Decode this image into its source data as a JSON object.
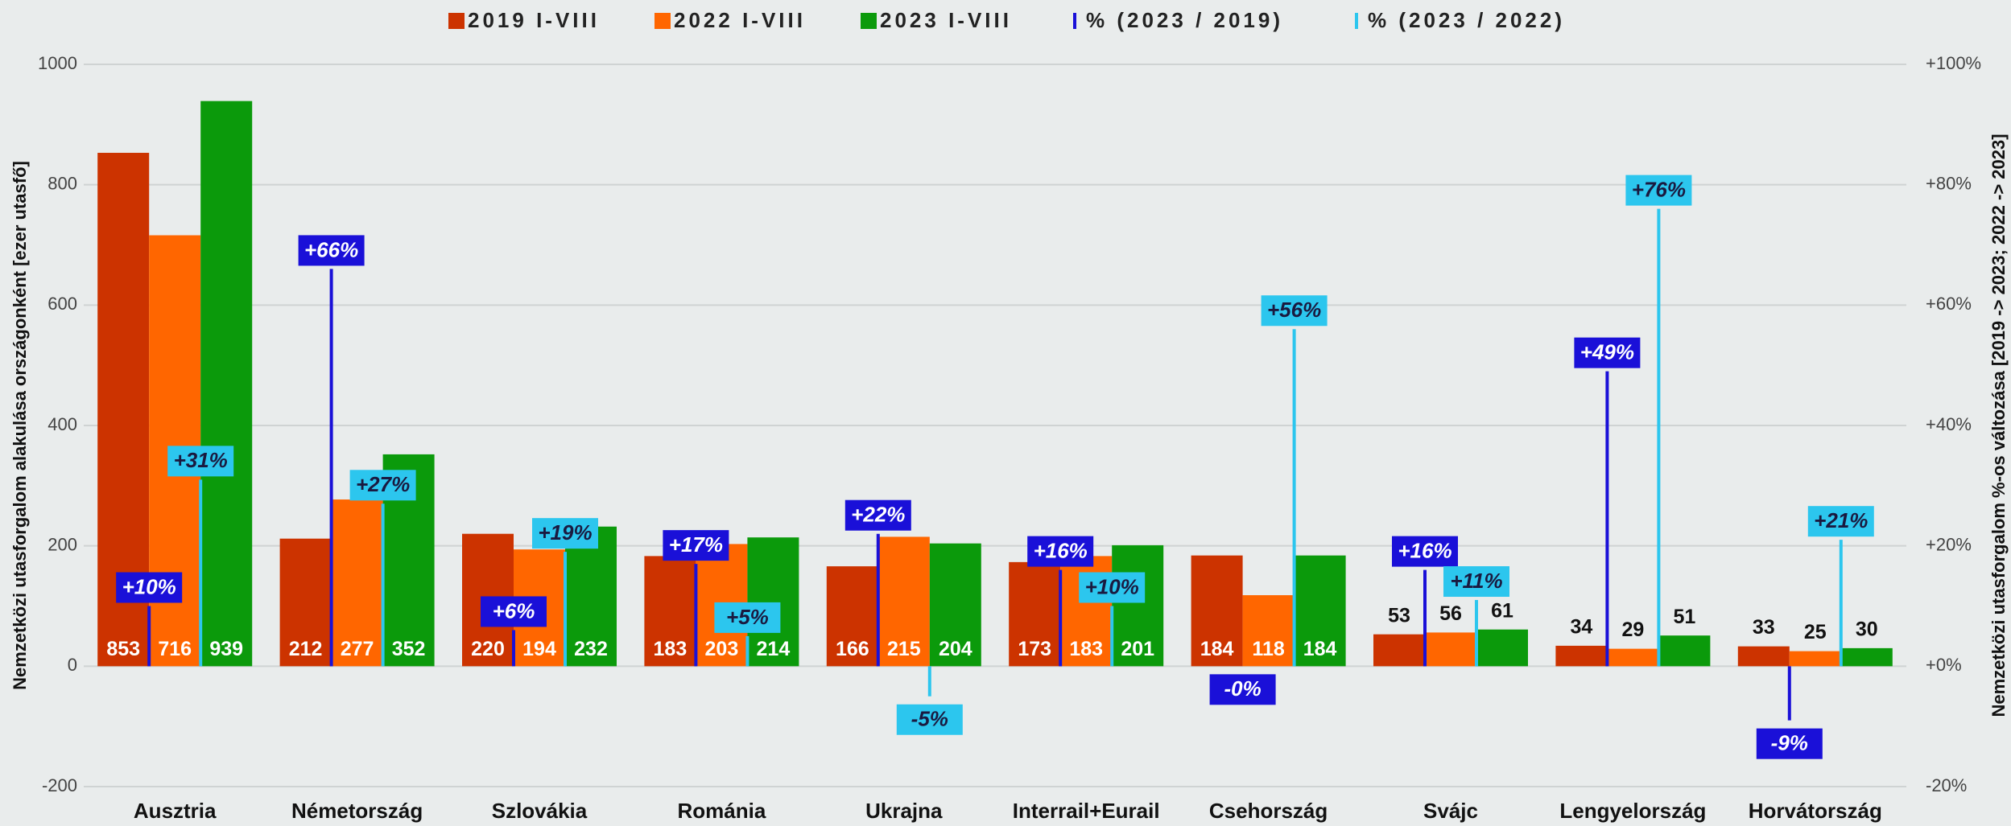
{
  "chart_data": {
    "type": "bar",
    "categories": [
      "Ausztria",
      "Németország",
      "Szlovákia",
      "Románia",
      "Ukrajna",
      "Interrail+Eurail",
      "Csehország",
      "Svájc",
      "Lengyelország",
      "Horvátország"
    ],
    "series": [
      {
        "name": "2019 I-VIII",
        "color": "#cc3300",
        "values": [
          853,
          212,
          220,
          183,
          166,
          173,
          184,
          53,
          34,
          33
        ]
      },
      {
        "name": "2022 I-VIII",
        "color": "#ff6600",
        "values": [
          716,
          277,
          194,
          203,
          215,
          183,
          118,
          56,
          29,
          25
        ]
      },
      {
        "name": "2023 I-VIII",
        "color": "#0b9a0b",
        "values": [
          939,
          352,
          232,
          214,
          204,
          201,
          184,
          61,
          51,
          30
        ]
      },
      {
        "name": "% (2023 / 2019)",
        "color": "#1a10d8",
        "axis": "y2",
        "values": [
          10,
          66,
          6,
          17,
          22,
          16,
          0,
          16,
          49,
          -9
        ],
        "value_labels": [
          "+10%",
          "+66%",
          "+6%",
          "+17%",
          "+22%",
          "+16%",
          "-0%",
          "+16%",
          "+49%",
          "-9%"
        ]
      },
      {
        "name": "% (2023 / 2022)",
        "color": "#2cc6ee",
        "axis": "y2",
        "values": [
          31,
          27,
          19,
          5,
          -5,
          10,
          56,
          11,
          76,
          21
        ],
        "value_labels": [
          "+31%",
          "+27%",
          "+19%",
          "+5%",
          "-5%",
          "+10%",
          "+56%",
          "+11%",
          "+76%",
          "+21%"
        ]
      }
    ],
    "ylabel": "Nemzetközi utasforgalom alakulása országonként [ezer utasfő]",
    "y2label": "Nemzetközi utasforgalom %-os változása [2019 -> 2023; 2022 -> 2023]",
    "ylim": [
      -200,
      1000
    ],
    "yticks": [
      -200,
      0,
      200,
      400,
      600,
      800,
      1000
    ],
    "y2lim": [
      -20,
      100
    ],
    "y2ticks": [
      {
        "value": -20,
        "label": "-20%"
      },
      {
        "value": 0,
        "label": "+0%"
      },
      {
        "value": 20,
        "label": "+20%"
      },
      {
        "value": 40,
        "label": "+40%"
      },
      {
        "value": 60,
        "label": "+60%"
      },
      {
        "value": 80,
        "label": "+80%"
      },
      {
        "value": 100,
        "label": "+100%"
      }
    ],
    "grid": true,
    "legend": "top"
  }
}
